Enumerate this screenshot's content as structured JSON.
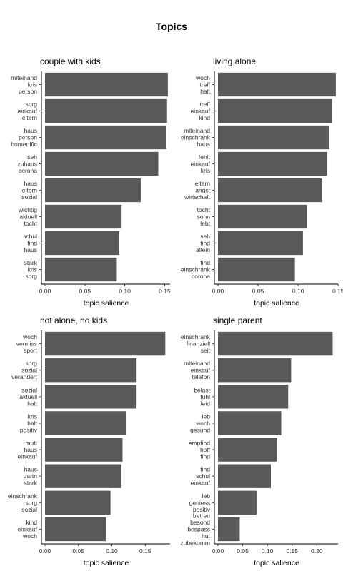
{
  "title": "Topics",
  "chart_data": [
    {
      "type": "bar",
      "orientation": "horizontal",
      "title": "couple with kids",
      "xlabel": "topic salience",
      "ylabel": "",
      "xlim": [
        0,
        0.155
      ],
      "xticks": [
        "0.00",
        "0.05",
        "0.10",
        "0.15"
      ],
      "categories": [
        [
          "miteinand",
          "kris",
          "person"
        ],
        [
          "sorg",
          "einkauf",
          "eltern"
        ],
        [
          "haus",
          "person",
          "homeoffic"
        ],
        [
          "seh",
          "zuhaus",
          "corona"
        ],
        [
          "haus",
          "eltern",
          "sozial"
        ],
        [
          "wichtig",
          "aktuell",
          "tocht"
        ],
        [
          "schul",
          "find",
          "haus"
        ],
        [
          "stark",
          "kris",
          "sorg"
        ]
      ],
      "values": [
        0.154,
        0.153,
        0.152,
        0.142,
        0.12,
        0.096,
        0.093,
        0.09
      ]
    },
    {
      "type": "bar",
      "orientation": "horizontal",
      "title": "living alone",
      "xlabel": "topic salience",
      "ylabel": "",
      "xlim": [
        0,
        0.148
      ],
      "xticks": [
        "0.00",
        "0.05",
        "0.10",
        "0.15"
      ],
      "categories": [
        [
          "woch",
          "treff",
          "halt"
        ],
        [
          "treff",
          "einkauf",
          "kind"
        ],
        [
          "miteinand",
          "einschrank",
          "haus"
        ],
        [
          "fehlt",
          "einkauf",
          "kris"
        ],
        [
          "eltern",
          "angst",
          "wirtschaft"
        ],
        [
          "tocht",
          "sohn",
          "lebt"
        ],
        [
          "seh",
          "find",
          "allein"
        ],
        [
          "find",
          "einschrank",
          "corona"
        ]
      ],
      "values": [
        0.147,
        0.142,
        0.139,
        0.136,
        0.13,
        0.111,
        0.106,
        0.096
      ]
    },
    {
      "type": "bar",
      "orientation": "horizontal",
      "title": "not alone, no kids",
      "xlabel": "topic salience",
      "ylabel": "",
      "xlim": [
        0,
        0.185
      ],
      "xticks": [
        "0.00",
        "0.05",
        "0.10",
        "0.15"
      ],
      "categories": [
        [
          "woch",
          "vermiss",
          "sport"
        ],
        [
          "sorg",
          "sozial",
          "verandert"
        ],
        [
          "sozial",
          "aktuell",
          "halt"
        ],
        [
          "kris",
          "halt",
          "positiv"
        ],
        [
          "mutt",
          "haus",
          "einkauf"
        ],
        [
          "haus",
          "partn",
          "stark"
        ],
        [
          "einschrank",
          "sorg",
          "sozial"
        ],
        [
          "kind",
          "einkauf",
          "woch"
        ]
      ],
      "values": [
        0.18,
        0.137,
        0.137,
        0.121,
        0.116,
        0.114,
        0.098,
        0.091
      ]
    },
    {
      "type": "bar",
      "orientation": "horizontal",
      "title": "single parent",
      "xlabel": "topic salience",
      "ylabel": "",
      "xlim": [
        0,
        0.24
      ],
      "xticks": [
        "0.00",
        "0.05",
        "0.10",
        "0.15",
        "0.20"
      ],
      "categories": [
        [
          "einschrank",
          "finanziell",
          "seit"
        ],
        [
          "miteinand",
          "einkauf",
          "telefon"
        ],
        [
          "belast",
          "fuhl",
          "leid"
        ],
        [
          "leb",
          "woch",
          "gesund"
        ],
        [
          "empfind",
          "hoff",
          "find"
        ],
        [
          "find",
          "schul",
          "einkauf"
        ],
        [
          "leb",
          "geniess",
          "positiv"
        ],
        [
          "betreu",
          "besond",
          "bespass",
          "hut",
          "zubekomm"
        ]
      ],
      "values": [
        0.232,
        0.148,
        0.142,
        0.128,
        0.12,
        0.107,
        0.078,
        0.044
      ]
    }
  ]
}
